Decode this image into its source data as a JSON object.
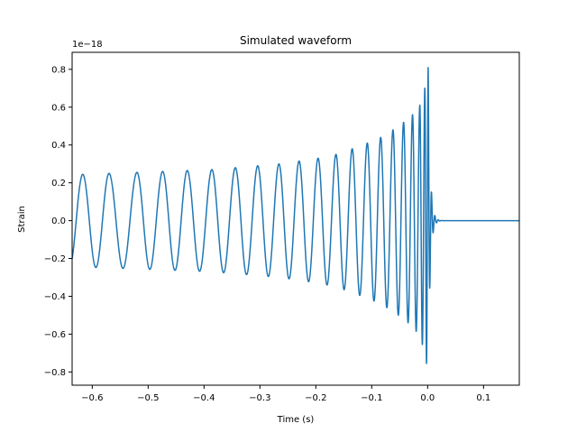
{
  "chart_data": {
    "type": "line",
    "title": "Simulated waveform",
    "xlabel": "Time (s)",
    "ylabel": "Strain",
    "y_offset_text": "1e−18",
    "xlim": [
      -0.636,
      0.164
    ],
    "ylim": [
      -0.87,
      0.89
    ],
    "x_ticks": [
      -0.6,
      -0.5,
      -0.4,
      -0.3,
      -0.2,
      -0.1,
      0.0,
      0.1
    ],
    "x_tick_labels": [
      "−0.6",
      "−0.5",
      "−0.4",
      "−0.3",
      "−0.2",
      "−0.1",
      "0.0",
      "0.1"
    ],
    "y_ticks": [
      -0.8,
      -0.6,
      -0.4,
      -0.2,
      0.0,
      0.2,
      0.4,
      0.6,
      0.8
    ],
    "y_tick_labels": [
      "−0.8",
      "−0.6",
      "−0.4",
      "−0.2",
      "0.0",
      "0.2",
      "0.4",
      "0.6",
      "0.8"
    ],
    "grid": false,
    "legend": "none",
    "series": [
      {
        "color": "#1f77b4",
        "waveform": "chirp",
        "t_start": -0.636,
        "t_merger": 0.0,
        "t_end": 0.164,
        "y_start": -0.22,
        "peak_amplitude_start": 0.245,
        "peak_amplitude_merger": 0.81,
        "min_trough_near_merger": -0.79,
        "cycle_peaks_x": [
          -0.617,
          -0.57,
          -0.52,
          -0.474,
          -0.43,
          -0.386,
          -0.344,
          -0.304,
          -0.266,
          -0.23,
          -0.196,
          -0.164,
          -0.135,
          -0.108,
          -0.084,
          -0.062,
          -0.043,
          -0.027,
          -0.014,
          -0.005,
          0.001
        ],
        "cycle_peaks_y": [
          0.245,
          0.25,
          0.255,
          0.26,
          0.265,
          0.27,
          0.28,
          0.29,
          0.3,
          0.315,
          0.33,
          0.35,
          0.38,
          0.41,
          0.44,
          0.48,
          0.52,
          0.56,
          0.61,
          0.7,
          0.81
        ]
      }
    ]
  }
}
